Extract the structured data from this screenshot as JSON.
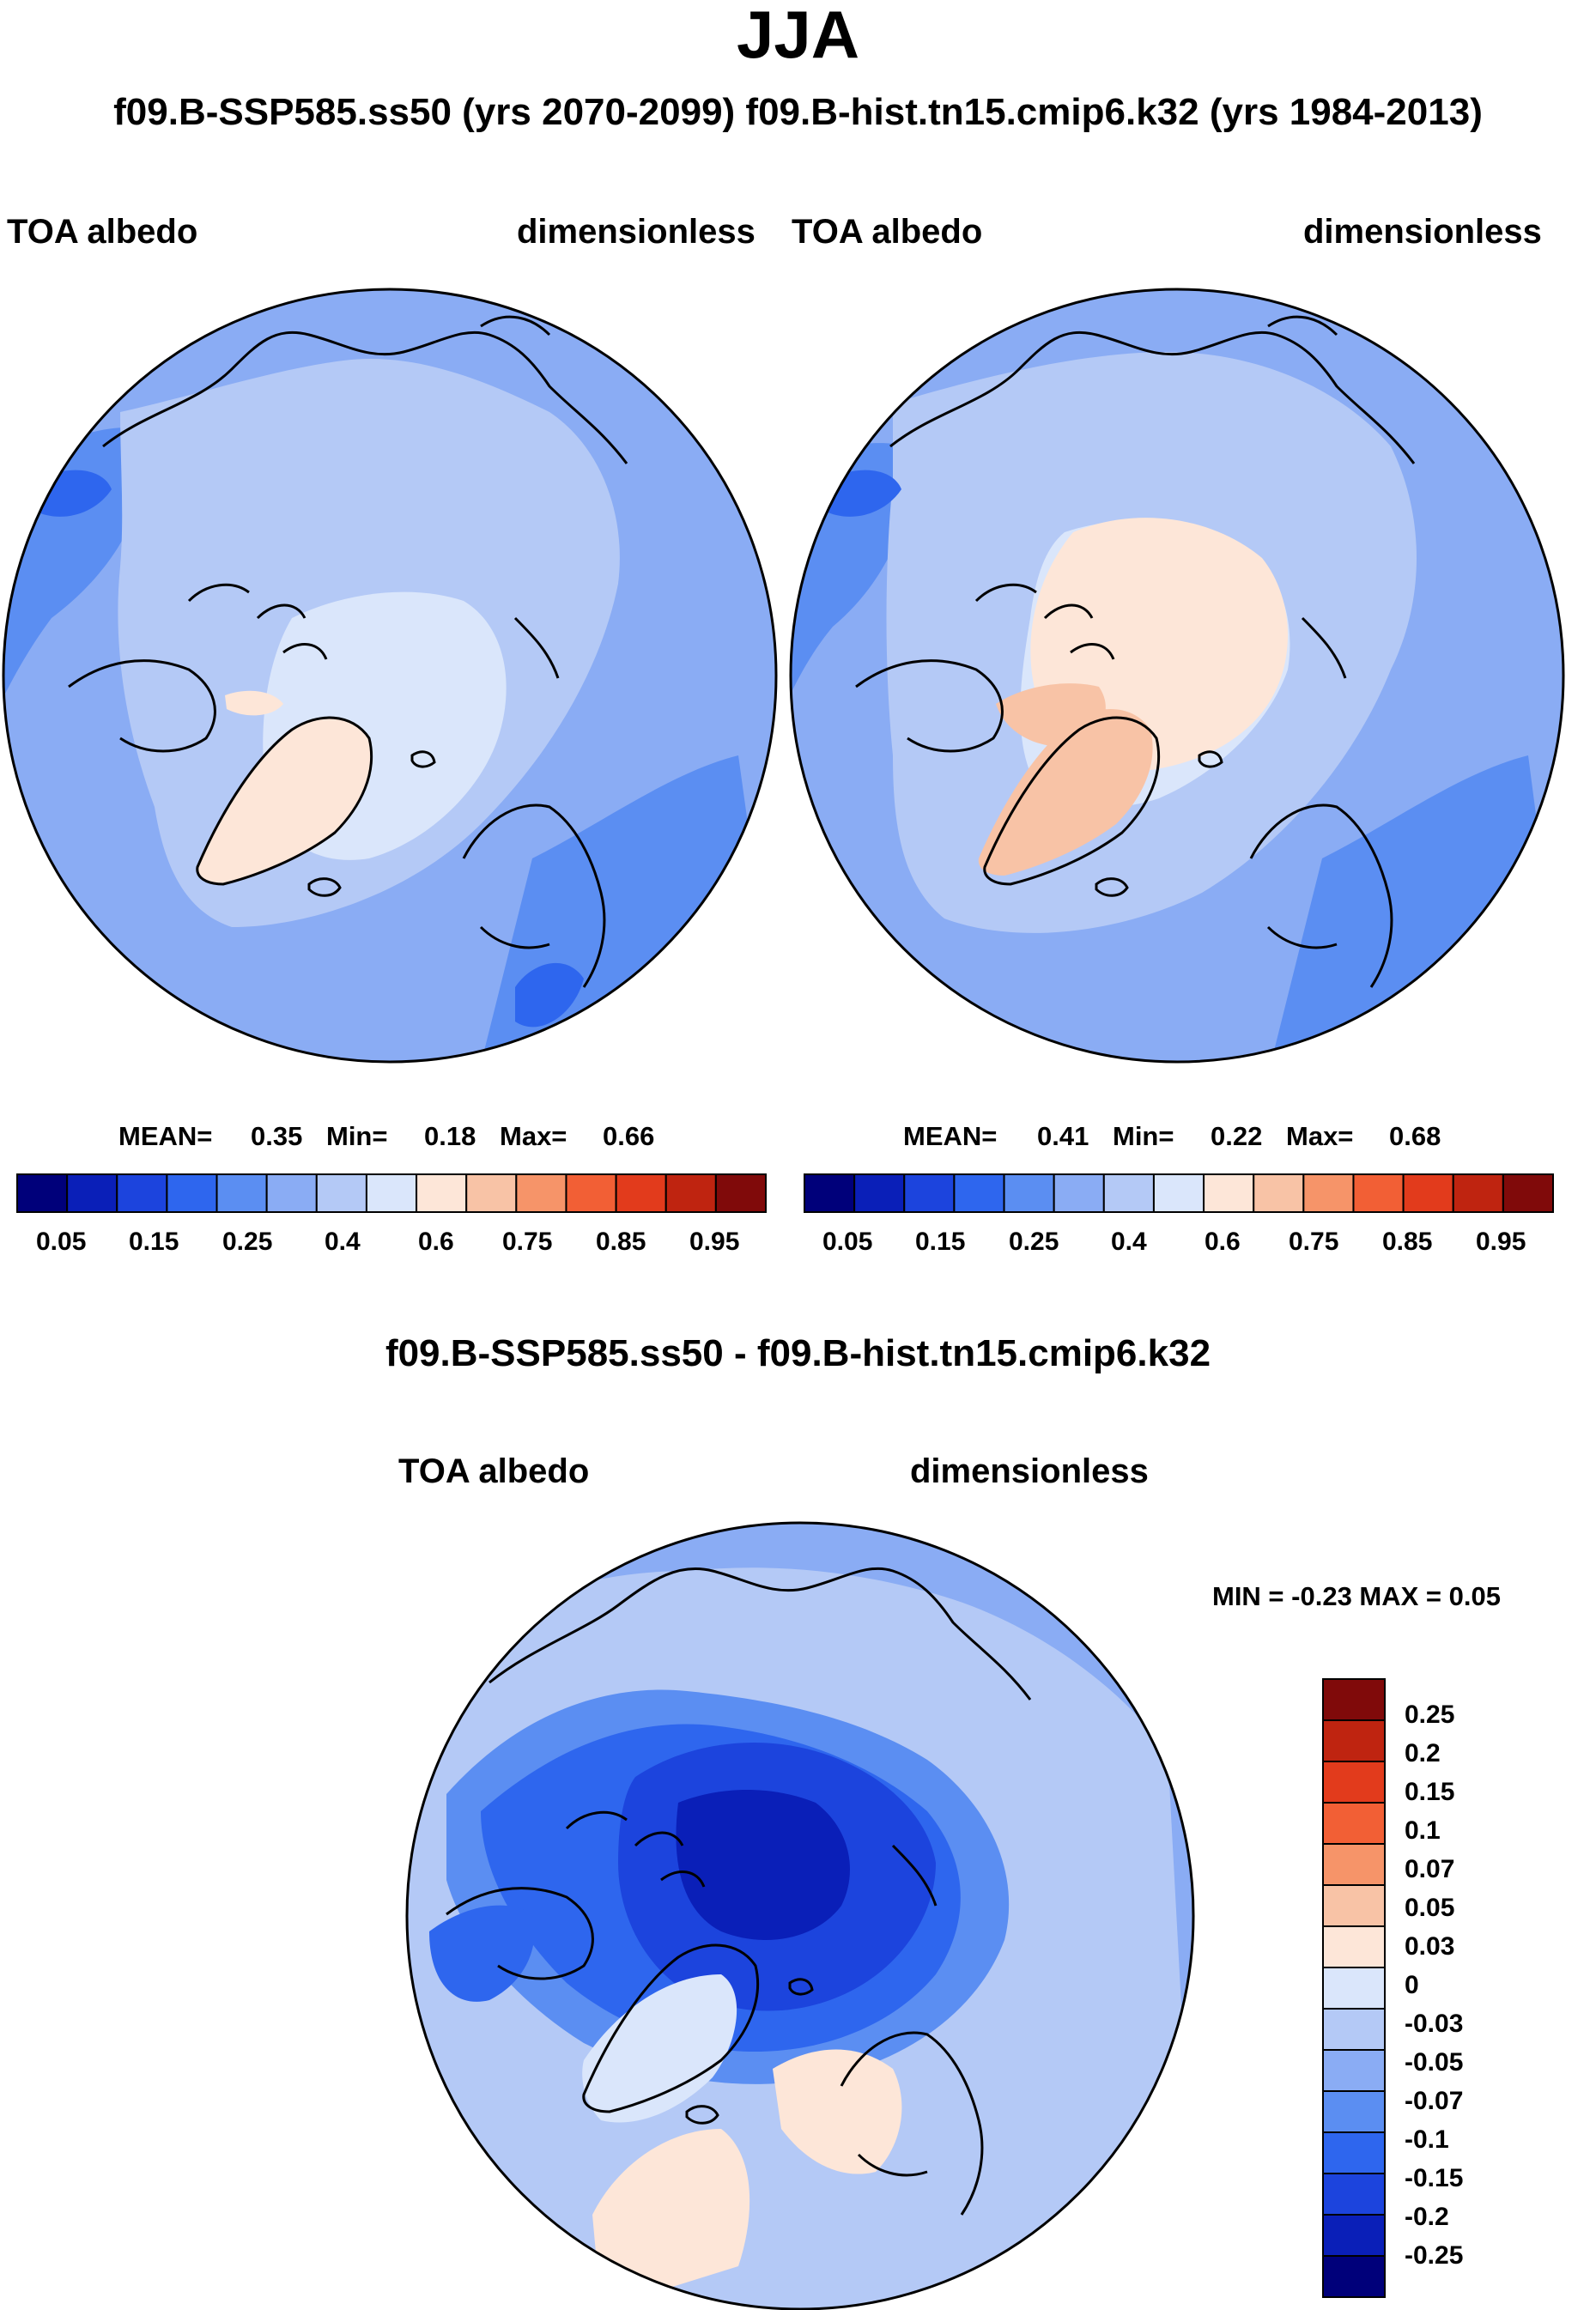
{
  "title": "JJA",
  "subtitle": "f09.B-SSP585.ss50 (yrs 2070-2099)  f09.B-hist.tn15.cmip6.k32 (yrs 1984-2013)",
  "panels": [
    {
      "left_label": "TOA albedo",
      "right_label": "dimensionless",
      "mean_label": "MEAN=",
      "mean": "0.35",
      "min_label": "Min=",
      "min": "0.18",
      "max_label": "Max=",
      "max": "0.66"
    },
    {
      "left_label": "TOA albedo",
      "right_label": "dimensionless",
      "mean_label": "MEAN=",
      "mean": "0.41",
      "min_label": "Min=",
      "min": "0.22",
      "max_label": "Max=",
      "max": "0.68"
    }
  ],
  "diff": {
    "title": "f09.B-SSP585.ss50 - f09.B-hist.tn15.cmip6.k32",
    "left_label": "TOA albedo",
    "right_label": "dimensionless",
    "minmax_text": "MIN =  -0.23 MAX =   0.05"
  },
  "colors": {
    "abs_scale": [
      "#00007a",
      "#0a1fb8",
      "#1c44dd",
      "#2e66ee",
      "#5b8ef2",
      "#8aacf4",
      "#b4c9f6",
      "#dae6fb",
      "#fde6d8",
      "#f8c3a6",
      "#f69469",
      "#f25f35",
      "#e23b1c",
      "#bf2410",
      "#800a0a"
    ],
    "diff_scale": [
      "#00007a",
      "#0a1fb8",
      "#1c44dd",
      "#2e66ee",
      "#5b8ef2",
      "#8aacf4",
      "#b4c9f6",
      "#dae6fb",
      "#fde6d8",
      "#f8c3a6",
      "#f69469",
      "#f25f35",
      "#e23b1c",
      "#bf2410",
      "#800a0a"
    ]
  },
  "chart_data": [
    {
      "type": "heatmap",
      "projection": "north polar stereographic",
      "title": "TOA albedo (f09.B-SSP585.ss50, yrs 2070-2099)",
      "units": "dimensionless",
      "mean": 0.35,
      "min": 0.18,
      "max": 0.66,
      "colorbar_ticks": [
        "0.05",
        "0.15",
        "0.25",
        "0.4",
        "0.6",
        "0.75",
        "0.85",
        "0.95"
      ],
      "colorbar_levels": [
        0.05,
        0.1,
        0.15,
        0.2,
        0.25,
        0.3,
        0.4,
        0.5,
        0.6,
        0.7,
        0.75,
        0.8,
        0.85,
        0.9,
        0.95
      ]
    },
    {
      "type": "heatmap",
      "projection": "north polar stereographic",
      "title": "TOA albedo (f09.B-hist.tn15.cmip6.k32, yrs 1984-2013)",
      "units": "dimensionless",
      "mean": 0.41,
      "min": 0.22,
      "max": 0.68,
      "colorbar_ticks": [
        "0.05",
        "0.15",
        "0.25",
        "0.4",
        "0.6",
        "0.75",
        "0.85",
        "0.95"
      ],
      "colorbar_levels": [
        0.05,
        0.1,
        0.15,
        0.2,
        0.25,
        0.3,
        0.4,
        0.5,
        0.6,
        0.7,
        0.75,
        0.8,
        0.85,
        0.9,
        0.95
      ]
    },
    {
      "type": "heatmap",
      "projection": "north polar stereographic",
      "title": "TOA albedo difference (f09.B-SSP585.ss50 - f09.B-hist.tn15.cmip6.k32)",
      "units": "dimensionless",
      "min": -0.23,
      "max": 0.05,
      "colorbar_ticks": [
        "0.25",
        "0.2",
        "0.15",
        "0.1",
        "0.07",
        "0.05",
        "0.03",
        "0",
        "-0.03",
        "-0.05",
        "-0.07",
        "-0.1",
        "-0.15",
        "-0.2",
        "-0.25"
      ]
    }
  ]
}
